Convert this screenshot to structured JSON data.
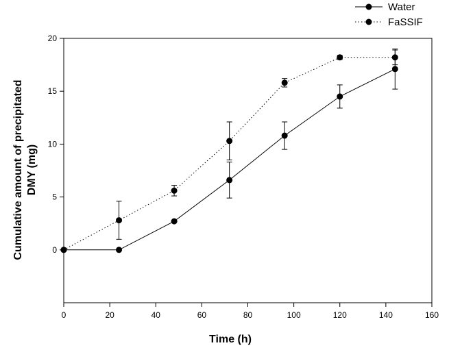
{
  "chart_data": {
    "type": "line",
    "title": "",
    "xlabel": "Time (h)",
    "ylabel_line1": "Cumulative amount of precipitated",
    "ylabel_line2": "DMY (mg)",
    "xlim": [
      0,
      160
    ],
    "ylim": [
      -5,
      20
    ],
    "xticks": [
      0,
      20,
      40,
      60,
      80,
      100,
      120,
      140,
      160
    ],
    "yticks": [
      0,
      5,
      10,
      15,
      20
    ],
    "grid": false,
    "legend_position": "top-right",
    "series": [
      {
        "name": "Water",
        "style": "solid",
        "color": "#000000",
        "x": [
          0,
          24,
          48,
          72,
          96,
          120,
          144
        ],
        "y": [
          0,
          0,
          2.7,
          6.6,
          10.8,
          14.5,
          17.1
        ],
        "err": [
          0,
          0,
          0,
          1.7,
          1.3,
          1.1,
          1.9
        ]
      },
      {
        "name": "FaSSIF",
        "style": "dotted",
        "color": "#000000",
        "x": [
          0,
          24,
          48,
          72,
          96,
          120,
          144
        ],
        "y": [
          0,
          2.8,
          5.6,
          10.3,
          15.8,
          18.2,
          18.2
        ],
        "err": [
          0,
          1.8,
          0.5,
          1.8,
          0.4,
          0.2,
          0.7
        ]
      }
    ]
  }
}
